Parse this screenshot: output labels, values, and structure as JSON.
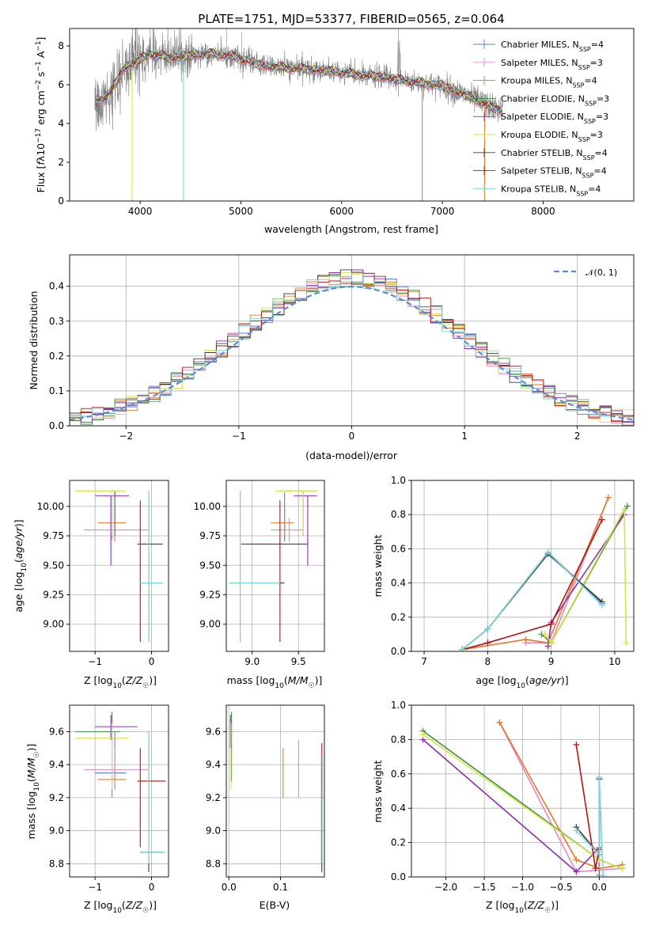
{
  "colors": {
    "Chabrier MILES": "#5b7fd6",
    "Salpeter MILES": "#e389c2",
    "Kroupa MILES": "#e07a2e",
    "Chabrier ELODIE": "#3d8f3d",
    "Salpeter ELODIE": "#8b2fb0",
    "Kroupa ELODIE": "#d7e34a",
    "Chabrier STELIB": "#3a3a3a",
    "Salpeter STELIB": "#b01414",
    "Kroupa STELIB": "#7dd6d6"
  },
  "chart_data": [
    {
      "type": "line",
      "title": "PLATE=1751, MJD=53377, FIBERID=0565, z=0.064",
      "xlabel": "wavelength [Angstrom, rest frame]",
      "ylabel": "Flux [f_λ10^-17 erg cm^-2 s^-1 A^-1]",
      "xlim": [
        3300,
        8900
      ],
      "ylim": [
        0,
        8.9
      ],
      "xticks": [
        4000,
        5000,
        6000,
        7000,
        8000
      ],
      "yticks": [
        0,
        2,
        4,
        6,
        8
      ],
      "data_series": "grey observed spectrum",
      "model_continuum": {
        "x": [
          3550,
          3700,
          3850,
          4000,
          4100,
          4300,
          4500,
          4700,
          4900,
          5200,
          5500,
          5800,
          6100,
          6400,
          6700,
          7000,
          7300,
          7500,
          7600
        ],
        "y": [
          5.0,
          5.6,
          6.9,
          7.3,
          7.6,
          7.4,
          7.5,
          7.6,
          7.5,
          7.0,
          6.85,
          6.75,
          6.55,
          6.4,
          6.15,
          5.95,
          5.3,
          4.8,
          4.7
        ]
      },
      "legend": [
        {
          "label": "Chabrier MILES, N",
          "sub": "SSP",
          "n": "=4"
        },
        {
          "label": "Salpeter MILES, N",
          "sub": "SSP",
          "n": "=3"
        },
        {
          "label": "Kroupa MILES, N",
          "sub": "SSP",
          "n": "=4"
        },
        {
          "label": "Chabrier ELODIE, N",
          "sub": "SSP",
          "n": "=3"
        },
        {
          "label": "Salpeter ELODIE, N",
          "sub": "SSP",
          "n": "=3"
        },
        {
          "label": "Kroupa ELODIE, N",
          "sub": "SSP",
          "n": "=3"
        },
        {
          "label": "Chabrier STELIB, N",
          "sub": "SSP",
          "n": "=4"
        },
        {
          "label": "Salpeter STELIB, N",
          "sub": "SSP",
          "n": "=4"
        },
        {
          "label": "Kroupa STELIB, N",
          "sub": "SSP",
          "n": "=4"
        }
      ],
      "legend_loc": "right"
    },
    {
      "type": "bar",
      "xlabel": "(data-model)/error",
      "ylabel": "Normed distribution",
      "xlim": [
        -2.5,
        2.5
      ],
      "ylim": [
        0,
        0.49
      ],
      "xticks": [
        -2,
        -1,
        0,
        1,
        2
      ],
      "yticks": [
        0.0,
        0.1,
        0.2,
        0.3,
        0.4
      ],
      "legend": "𝒩(0, 1)",
      "legend_loc": "top-right",
      "bin_width": 0.1,
      "grid": true
    },
    {
      "type": "scatter",
      "xlabel": "Z [log10(Z/Z☉)]",
      "ylabel": "age  [log10(age/yr)]",
      "xlim": [
        -1.45,
        0.3
      ],
      "ylim": [
        8.77,
        10.22
      ],
      "xticks": [
        -1,
        0
      ],
      "yticks": [
        9.0,
        9.25,
        9.5,
        9.75,
        10.0
      ],
      "points": [
        {
          "s": "Chabrier MILES",
          "x": -0.65,
          "y": 10.08,
          "ex": [
            -0.65,
            -0.65
          ],
          "ey": [
            9.7,
            10.12
          ]
        },
        {
          "s": "Salpeter MILES",
          "x": -0.65,
          "y": 9.8,
          "ex": [
            -1.2,
            -0.05
          ],
          "ey": [
            9.7,
            9.9
          ]
        },
        {
          "s": "Kroupa MILES",
          "x": -0.7,
          "y": 9.86,
          "ex": [
            -0.95,
            -0.45
          ],
          "ey": [
            9.72,
            10.0
          ]
        },
        {
          "s": "Chabrier ELODIE",
          "x": -0.65,
          "y": 10.13,
          "ex": [
            -1.35,
            -0.55
          ],
          "ey": [
            9.75,
            10.13
          ]
        },
        {
          "s": "Salpeter ELODIE",
          "x": -0.72,
          "y": 10.09,
          "ex": [
            -1.0,
            -0.4
          ],
          "ey": [
            9.5,
            10.09
          ]
        },
        {
          "s": "Kroupa ELODIE",
          "x": -0.7,
          "y": 10.13,
          "ex": [
            -1.35,
            -0.45
          ],
          "ey": [
            9.75,
            10.13
          ]
        },
        {
          "s": "Chabrier STELIB",
          "x": -0.05,
          "y": 9.35,
          "ex": [
            -0.2,
            0.2
          ],
          "ey": [
            8.85,
            10.13
          ]
        },
        {
          "s": "Salpeter STELIB",
          "x": -0.2,
          "y": 9.68,
          "ex": [
            -0.25,
            0.2
          ],
          "ey": [
            8.85,
            10.05
          ]
        },
        {
          "s": "Kroupa STELIB",
          "x": -0.05,
          "y": 9.35,
          "ex": [
            -0.2,
            0.2
          ],
          "ey": [
            8.85,
            10.13
          ]
        }
      ]
    },
    {
      "type": "scatter",
      "xlabel": "mass [log10(M/M☉)]",
      "ylabel": "",
      "xlim": [
        8.72,
        9.78
      ],
      "ylim": [
        8.77,
        10.22
      ],
      "xticks": [
        9.0,
        9.5
      ],
      "yticks": [
        9.0,
        9.25,
        9.5,
        9.75,
        10.0
      ],
      "points": [
        {
          "s": "Chabrier MILES",
          "x": 9.35,
          "y": 10.08,
          "ex": [
            9.35,
            9.35
          ],
          "ey": [
            9.7,
            10.12
          ]
        },
        {
          "s": "Salpeter MILES",
          "x": 9.4,
          "y": 9.8,
          "ex": [
            9.2,
            9.55
          ],
          "ey": [
            9.7,
            9.9
          ]
        },
        {
          "s": "Kroupa MILES",
          "x": 9.35,
          "y": 9.86,
          "ex": [
            9.2,
            9.45
          ],
          "ey": [
            9.72,
            10.0
          ]
        },
        {
          "s": "Chabrier ELODIE",
          "x": 9.55,
          "y": 10.13,
          "ex": [
            9.3,
            9.7
          ],
          "ey": [
            9.75,
            10.13
          ]
        },
        {
          "s": "Salpeter ELODIE",
          "x": 9.6,
          "y": 10.09,
          "ex": [
            9.45,
            9.7
          ],
          "ey": [
            9.5,
            10.09
          ]
        },
        {
          "s": "Kroupa ELODIE",
          "x": 9.55,
          "y": 10.13,
          "ex": [
            9.25,
            9.7
          ],
          "ey": [
            9.75,
            10.13
          ]
        },
        {
          "s": "Chabrier STELIB",
          "x": 8.87,
          "y": 9.35,
          "ex": [
            8.75,
            9.35
          ],
          "ey": [
            8.85,
            10.13
          ]
        },
        {
          "s": "Salpeter STELIB",
          "x": 9.3,
          "y": 9.68,
          "ex": [
            8.88,
            9.6
          ],
          "ey": [
            8.85,
            10.05
          ]
        },
        {
          "s": "Kroupa STELIB",
          "x": 8.87,
          "y": 9.35,
          "ex": [
            8.75,
            9.3
          ],
          "ey": [
            8.85,
            10.13
          ]
        }
      ]
    },
    {
      "type": "line",
      "xlabel": "age  [log10(age/yr)]",
      "ylabel": "mass weight",
      "xlim": [
        6.8,
        10.3
      ],
      "ylim": [
        0,
        1.0
      ],
      "xticks": [
        7,
        8,
        9,
        10
      ],
      "yticks": [
        0.0,
        0.2,
        0.4,
        0.6,
        0.8,
        1.0
      ],
      "series": [
        {
          "name": "Chabrier MILES",
          "x": [
            7.6,
            8.0,
            8.95,
            9.8
          ],
          "y": [
            0.01,
            0.13,
            0.58,
            0.28
          ]
        },
        {
          "name": "Salpeter MILES",
          "x": [
            8.6,
            9.0,
            9.9
          ],
          "y": [
            0.05,
            0.05,
            0.9
          ]
        },
        {
          "name": "Kroupa MILES",
          "x": [
            7.6,
            8.6,
            8.95,
            9.9
          ],
          "y": [
            0.01,
            0.07,
            0.05,
            0.9
          ]
        },
        {
          "name": "Chabrier ELODIE",
          "x": [
            8.85,
            9.0,
            10.2
          ],
          "y": [
            0.1,
            0.05,
            0.85
          ]
        },
        {
          "name": "Salpeter ELODIE",
          "x": [
            8.95,
            9.0,
            10.15
          ],
          "y": [
            0.03,
            0.17,
            0.8
          ]
        },
        {
          "name": "Kroupa ELODIE",
          "x": [
            8.9,
            9.0,
            10.15,
            10.18
          ],
          "y": [
            0.1,
            0.05,
            0.83,
            0.05
          ]
        },
        {
          "name": "Chabrier STELIB",
          "x": [
            7.6,
            8.0,
            8.95,
            9.8
          ],
          "y": [
            0.01,
            0.13,
            0.57,
            0.29
          ]
        },
        {
          "name": "Salpeter STELIB",
          "x": [
            7.6,
            8.0,
            9.0,
            9.8
          ],
          "y": [
            0.01,
            0.05,
            0.16,
            0.77
          ]
        },
        {
          "name": "Kroupa STELIB",
          "x": [
            7.6,
            8.0,
            8.95,
            9.8
          ],
          "y": [
            0.01,
            0.13,
            0.58,
            0.27
          ]
        }
      ]
    },
    {
      "type": "scatter",
      "xlabel": "Z [log10(Z/Z☉)]",
      "ylabel": "mass [log10(M/M☉)]",
      "xlim": [
        -1.45,
        0.3
      ],
      "ylim": [
        8.72,
        9.76
      ],
      "xticks": [
        -1,
        0
      ],
      "yticks": [
        8.8,
        9.0,
        9.2,
        9.4,
        9.6
      ],
      "points": [
        {
          "s": "Chabrier MILES",
          "x": -0.65,
          "y": 9.35,
          "ex": [
            -1.0,
            -0.45
          ],
          "ey": [
            9.25,
            9.6
          ]
        },
        {
          "s": "Salpeter MILES",
          "x": -0.65,
          "y": 9.37,
          "ex": [
            -1.2,
            -0.05
          ],
          "ey": [
            9.25,
            9.5
          ]
        },
        {
          "s": "Kroupa MILES",
          "x": -0.7,
          "y": 9.31,
          "ex": [
            -0.95,
            -0.45
          ],
          "ey": [
            9.2,
            9.4
          ]
        },
        {
          "s": "Chabrier ELODIE",
          "x": -0.7,
          "y": 9.6,
          "ex": [
            -1.35,
            -0.55
          ],
          "ey": [
            9.3,
            9.72
          ]
        },
        {
          "s": "Salpeter ELODIE",
          "x": -0.72,
          "y": 9.63,
          "ex": [
            -1.0,
            -0.25
          ],
          "ey": [
            9.55,
            9.7
          ]
        },
        {
          "s": "Kroupa ELODIE",
          "x": -0.7,
          "y": 9.56,
          "ex": [
            -1.35,
            -0.4
          ],
          "ey": [
            9.25,
            9.65
          ]
        },
        {
          "s": "Chabrier STELIB",
          "x": -0.05,
          "y": 8.87,
          "ex": [
            -0.2,
            0.2
          ],
          "ey": [
            8.75,
            9.6
          ]
        },
        {
          "s": "Salpeter STELIB",
          "x": -0.2,
          "y": 9.3,
          "ex": [
            -0.25,
            0.25
          ],
          "ey": [
            8.9,
            9.5
          ]
        },
        {
          "s": "Kroupa STELIB",
          "x": -0.05,
          "y": 8.87,
          "ex": [
            -0.2,
            0.25
          ],
          "ey": [
            8.8,
            9.6
          ]
        }
      ]
    },
    {
      "type": "scatter",
      "xlabel": "E(B-V)",
      "ylabel": "",
      "xlim": [
        -0.005,
        0.185
      ],
      "ylim": [
        8.72,
        9.76
      ],
      "xticks": [
        0.0,
        0.1
      ],
      "yticks": [
        8.8,
        9.0,
        9.2,
        9.4,
        9.6
      ],
      "points": [
        {
          "s": "Chabrier MILES",
          "x": 0.005,
          "y": 9.6,
          "ey": [
            9.45,
            9.7
          ]
        },
        {
          "s": "Salpeter MILES",
          "x": 0.135,
          "y": 9.37,
          "ey": [
            9.2,
            9.55
          ]
        },
        {
          "s": "Kroupa MILES",
          "x": 0.105,
          "y": 9.31,
          "ey": [
            9.2,
            9.5
          ]
        },
        {
          "s": "Chabrier ELODIE",
          "x": 0.005,
          "y": 9.6,
          "ey": [
            9.3,
            9.72
          ]
        },
        {
          "s": "Salpeter ELODIE",
          "x": 0.003,
          "y": 9.63,
          "ey": [
            9.5,
            9.7
          ]
        },
        {
          "s": "Kroupa ELODIE",
          "x": 0.004,
          "y": 9.5,
          "ey": [
            9.25,
            9.65
          ]
        },
        {
          "s": "Chabrier STELIB",
          "x": 0.18,
          "y": 8.87,
          "ey": [
            8.75,
            9.45
          ]
        },
        {
          "s": "Salpeter STELIB",
          "x": 0.18,
          "y": 9.3,
          "ey": [
            9.2,
            9.53
          ]
        },
        {
          "s": "Kroupa STELIB",
          "x": 0.179,
          "y": 8.87,
          "ey": [
            8.8,
            9.45
          ]
        }
      ]
    },
    {
      "type": "line",
      "xlabel": "Z [log10(Z/Z☉)]",
      "ylabel": "mass weight",
      "xlim": [
        -2.45,
        0.45
      ],
      "ylim": [
        0,
        1.0
      ],
      "xticks": [
        -2.0,
        -1.5,
        -1.0,
        -0.5,
        0.0
      ],
      "yticks": [
        0.0,
        0.2,
        0.4,
        0.6,
        0.8,
        1.0
      ],
      "series": [
        {
          "name": "Chabrier MILES",
          "x": [
            0.0,
            0.0
          ],
          "y": [
            0.58,
            0.01
          ]
        },
        {
          "name": "Salpeter MILES",
          "x": [
            -1.3,
            -0.3,
            0.3
          ],
          "y": [
            0.9,
            0.03,
            0.05
          ]
        },
        {
          "name": "Kroupa MILES",
          "x": [
            -1.3,
            -0.3,
            0.0,
            0.3
          ],
          "y": [
            0.9,
            0.1,
            0.05,
            0.07
          ]
        },
        {
          "name": "Chabrier ELODIE",
          "x": [
            -2.3,
            0.0,
            0.3
          ],
          "y": [
            0.85,
            0.1,
            0.05
          ]
        },
        {
          "name": "Salpeter ELODIE",
          "x": [
            -2.3,
            -0.3,
            0.0
          ],
          "y": [
            0.8,
            0.03,
            0.17
          ]
        },
        {
          "name": "Kroupa ELODIE",
          "x": [
            -2.3,
            0.0,
            0.3
          ],
          "y": [
            0.83,
            0.1,
            0.05
          ]
        },
        {
          "name": "Chabrier STELIB",
          "x": [
            -0.3,
            0.0,
            0.0
          ],
          "y": [
            0.29,
            0.13,
            0.57
          ]
        },
        {
          "name": "Salpeter STELIB",
          "x": [
            -0.3,
            -0.05,
            0.0
          ],
          "y": [
            0.77,
            0.05,
            0.16
          ]
        },
        {
          "name": "Kroupa STELIB",
          "x": [
            -0.3,
            0.0,
            0.0,
            0.05
          ],
          "y": [
            0.27,
            0.13,
            0.58,
            0.01
          ]
        }
      ]
    }
  ]
}
